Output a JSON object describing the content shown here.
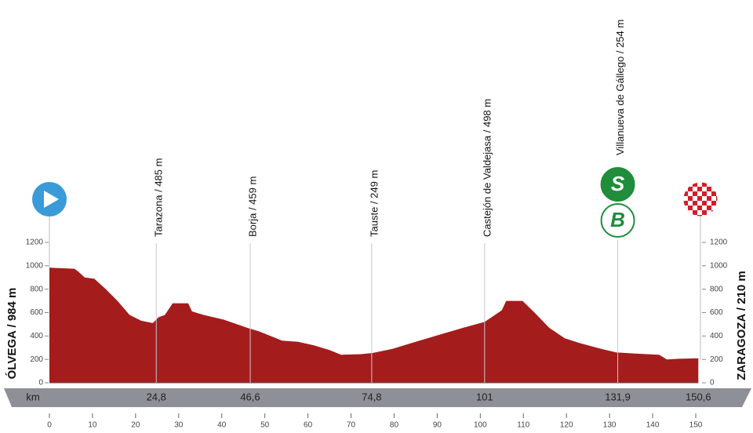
{
  "chart_data": {
    "type": "area",
    "start_label": "ÓLVEGA / 984 m",
    "finish_label": "ZARAGOZA / 210 m",
    "distance_label": "km",
    "x": [
      0,
      5.8,
      6.7,
      8.2,
      10.4,
      13.1,
      15.8,
      18.6,
      21.3,
      24,
      25.3,
      26.8,
      28.6,
      32.2,
      33.1,
      35.8,
      40.4,
      45.9,
      48.6,
      51.3,
      54,
      57.7,
      61.4,
      65,
      67.7,
      72.3,
      75,
      79.6,
      85,
      90.5,
      96,
      101,
      105,
      106,
      109.8,
      112.6,
      116,
      119.6,
      123,
      127,
      131.5,
      136,
      141.5,
      143.3,
      146,
      150.6
    ],
    "values": [
      984,
      975,
      950,
      900,
      890,
      800,
      700,
      580,
      530,
      510,
      560,
      580,
      680,
      680,
      610,
      580,
      540,
      470,
      440,
      400,
      360,
      350,
      320,
      280,
      240,
      245,
      255,
      290,
      350,
      410,
      470,
      520,
      620,
      700,
      700,
      600,
      470,
      380,
      340,
      300,
      260,
      250,
      240,
      200,
      205,
      210
    ],
    "color": "#a51c1c",
    "xlim": [
      0,
      150
    ],
    "ylim": [
      0,
      1200
    ],
    "xticks": [
      0,
      10,
      20,
      30,
      40,
      50,
      60,
      70,
      80,
      90,
      100,
      110,
      120,
      130,
      140,
      150
    ],
    "yticks": [
      0,
      200,
      400,
      600,
      800,
      1000,
      1200
    ],
    "points": [
      {
        "name": "Tarazona / 485 m",
        "km": {
          "value": 24.8,
          "label": "24,8"
        }
      },
      {
        "name": "Borja / 459 m",
        "km": {
          "value": 46.6,
          "label": "46,6"
        }
      },
      {
        "name": "Tauste / 249 m",
        "km": {
          "value": 74.8,
          "label": "74,8"
        }
      },
      {
        "name": "Castejón de Valdejasa / 498 m",
        "km": 101
      },
      {
        "name": "Villanueva de Gállego / 254 m",
        "km": {
          "value": 131.9,
          "label": "131,9"
        },
        "icons": [
          "S",
          "B"
        ]
      },
      {
        "name": "",
        "km": {
          "value": 150.6,
          "label": "150,6"
        }
      }
    ]
  }
}
